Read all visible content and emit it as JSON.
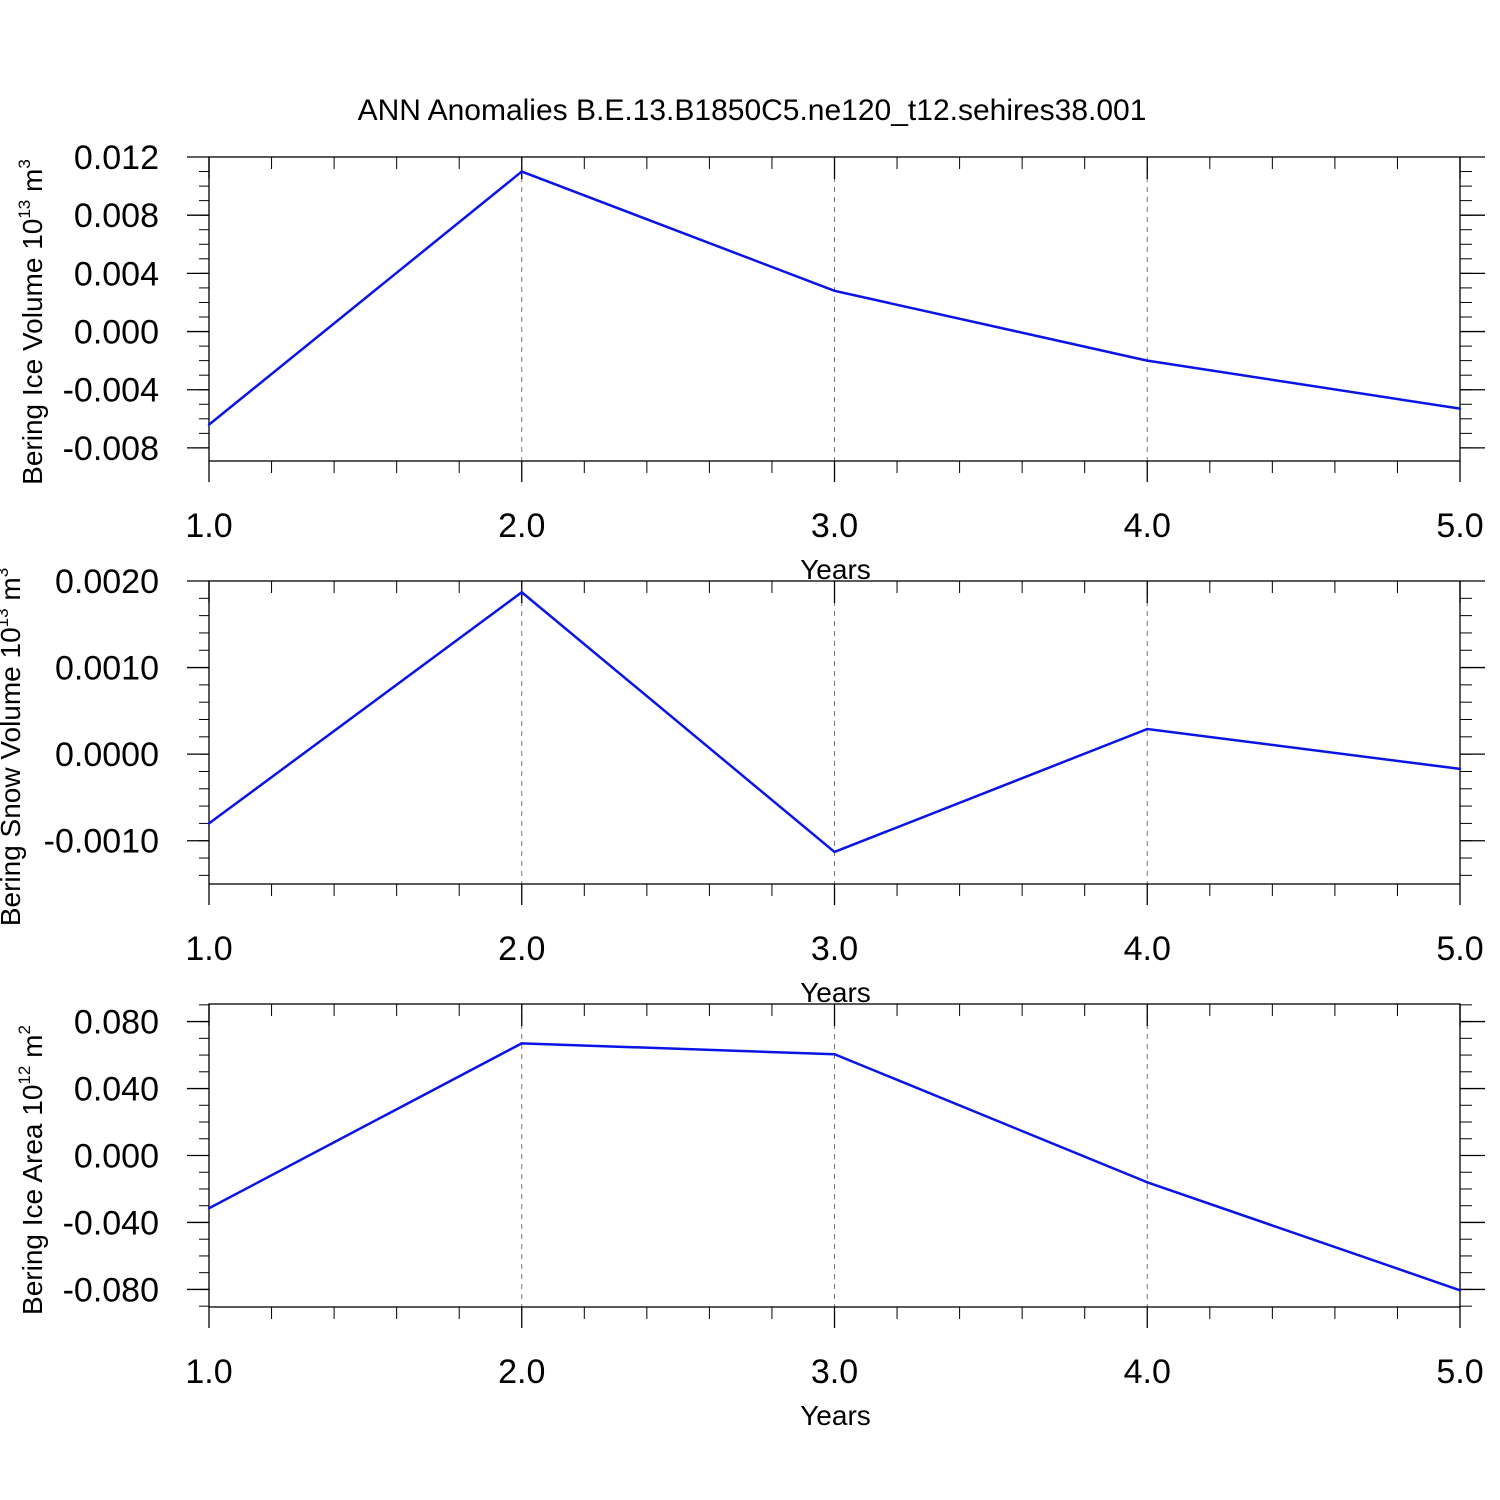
{
  "figure": {
    "title": "ANN Anomalies B.E.13.B1850C5.ne120_t12.sehires38.001"
  },
  "colors": {
    "series": "#0a14e6",
    "axis": "#000000",
    "grid": "#777777"
  },
  "chart_data": [
    {
      "type": "line",
      "xlabel": "Years",
      "ylabel": {
        "main": "Bering Ice Volume 10",
        "exp": "13",
        "unit": " m",
        "unit_exp": "3"
      },
      "x": [
        1,
        2,
        3,
        4,
        5
      ],
      "xlim": [
        1,
        5
      ],
      "x_ticks": [
        1,
        2,
        3,
        4,
        5
      ],
      "x_tick_labels": [
        "1.0",
        "2.0",
        "3.0",
        "4.0",
        "5.0"
      ],
      "ylim": [
        -0.0089,
        0.012
      ],
      "y_ticks": [
        0.012,
        0.008,
        0.004,
        0.0,
        -0.004,
        -0.008
      ],
      "y_tick_labels": [
        "0.012",
        "0.008",
        "0.004",
        "0.000",
        "-0.004",
        "-0.008"
      ],
      "y_minor_step": 0.001,
      "grid": "x-dashed",
      "series": [
        {
          "name": "Bering Ice Volume",
          "values": [
            -0.0064,
            0.011,
            0.0028,
            -0.002,
            -0.0053
          ]
        }
      ]
    },
    {
      "type": "line",
      "xlabel": "Years",
      "ylabel": {
        "main": "Bering Snow Volume 10",
        "exp": "13",
        "unit": " m",
        "unit_exp": "3"
      },
      "x": [
        1,
        2,
        3,
        4,
        5
      ],
      "xlim": [
        1,
        5
      ],
      "x_ticks": [
        1,
        2,
        3,
        4,
        5
      ],
      "x_tick_labels": [
        "1.0",
        "2.0",
        "3.0",
        "4.0",
        "5.0"
      ],
      "ylim": [
        -0.0015,
        0.002
      ],
      "y_ticks": [
        0.002,
        0.001,
        0.0,
        -0.001
      ],
      "y_tick_labels": [
        "0.0020",
        "0.0010",
        "0.0000",
        "-0.0010"
      ],
      "y_minor_step": 0.0002,
      "grid": "x-dashed",
      "series": [
        {
          "name": "Bering Snow Volume",
          "values": [
            -0.0008,
            0.00187,
            -0.00113,
            0.00029,
            -0.00017
          ]
        }
      ]
    },
    {
      "type": "line",
      "xlabel": "Years",
      "ylabel": {
        "main": "Bering Ice Area 10",
        "exp": "12",
        "unit": " m",
        "unit_exp": "2"
      },
      "x": [
        1,
        2,
        3,
        4,
        5
      ],
      "xlim": [
        1,
        5
      ],
      "x_ticks": [
        1,
        2,
        3,
        4,
        5
      ],
      "x_tick_labels": [
        "1.0",
        "2.0",
        "3.0",
        "4.0",
        "5.0"
      ],
      "ylim": [
        -0.0905,
        0.0905
      ],
      "y_ticks": [
        0.08,
        0.04,
        0.0,
        -0.04,
        -0.08
      ],
      "y_tick_labels": [
        "0.080",
        "0.040",
        "0.000",
        "-0.040",
        "-0.080"
      ],
      "y_minor_step": 0.01,
      "grid": "x-dashed",
      "series": [
        {
          "name": "Bering Ice Area",
          "values": [
            -0.0315,
            0.067,
            0.0605,
            -0.016,
            -0.0805
          ]
        }
      ]
    }
  ]
}
